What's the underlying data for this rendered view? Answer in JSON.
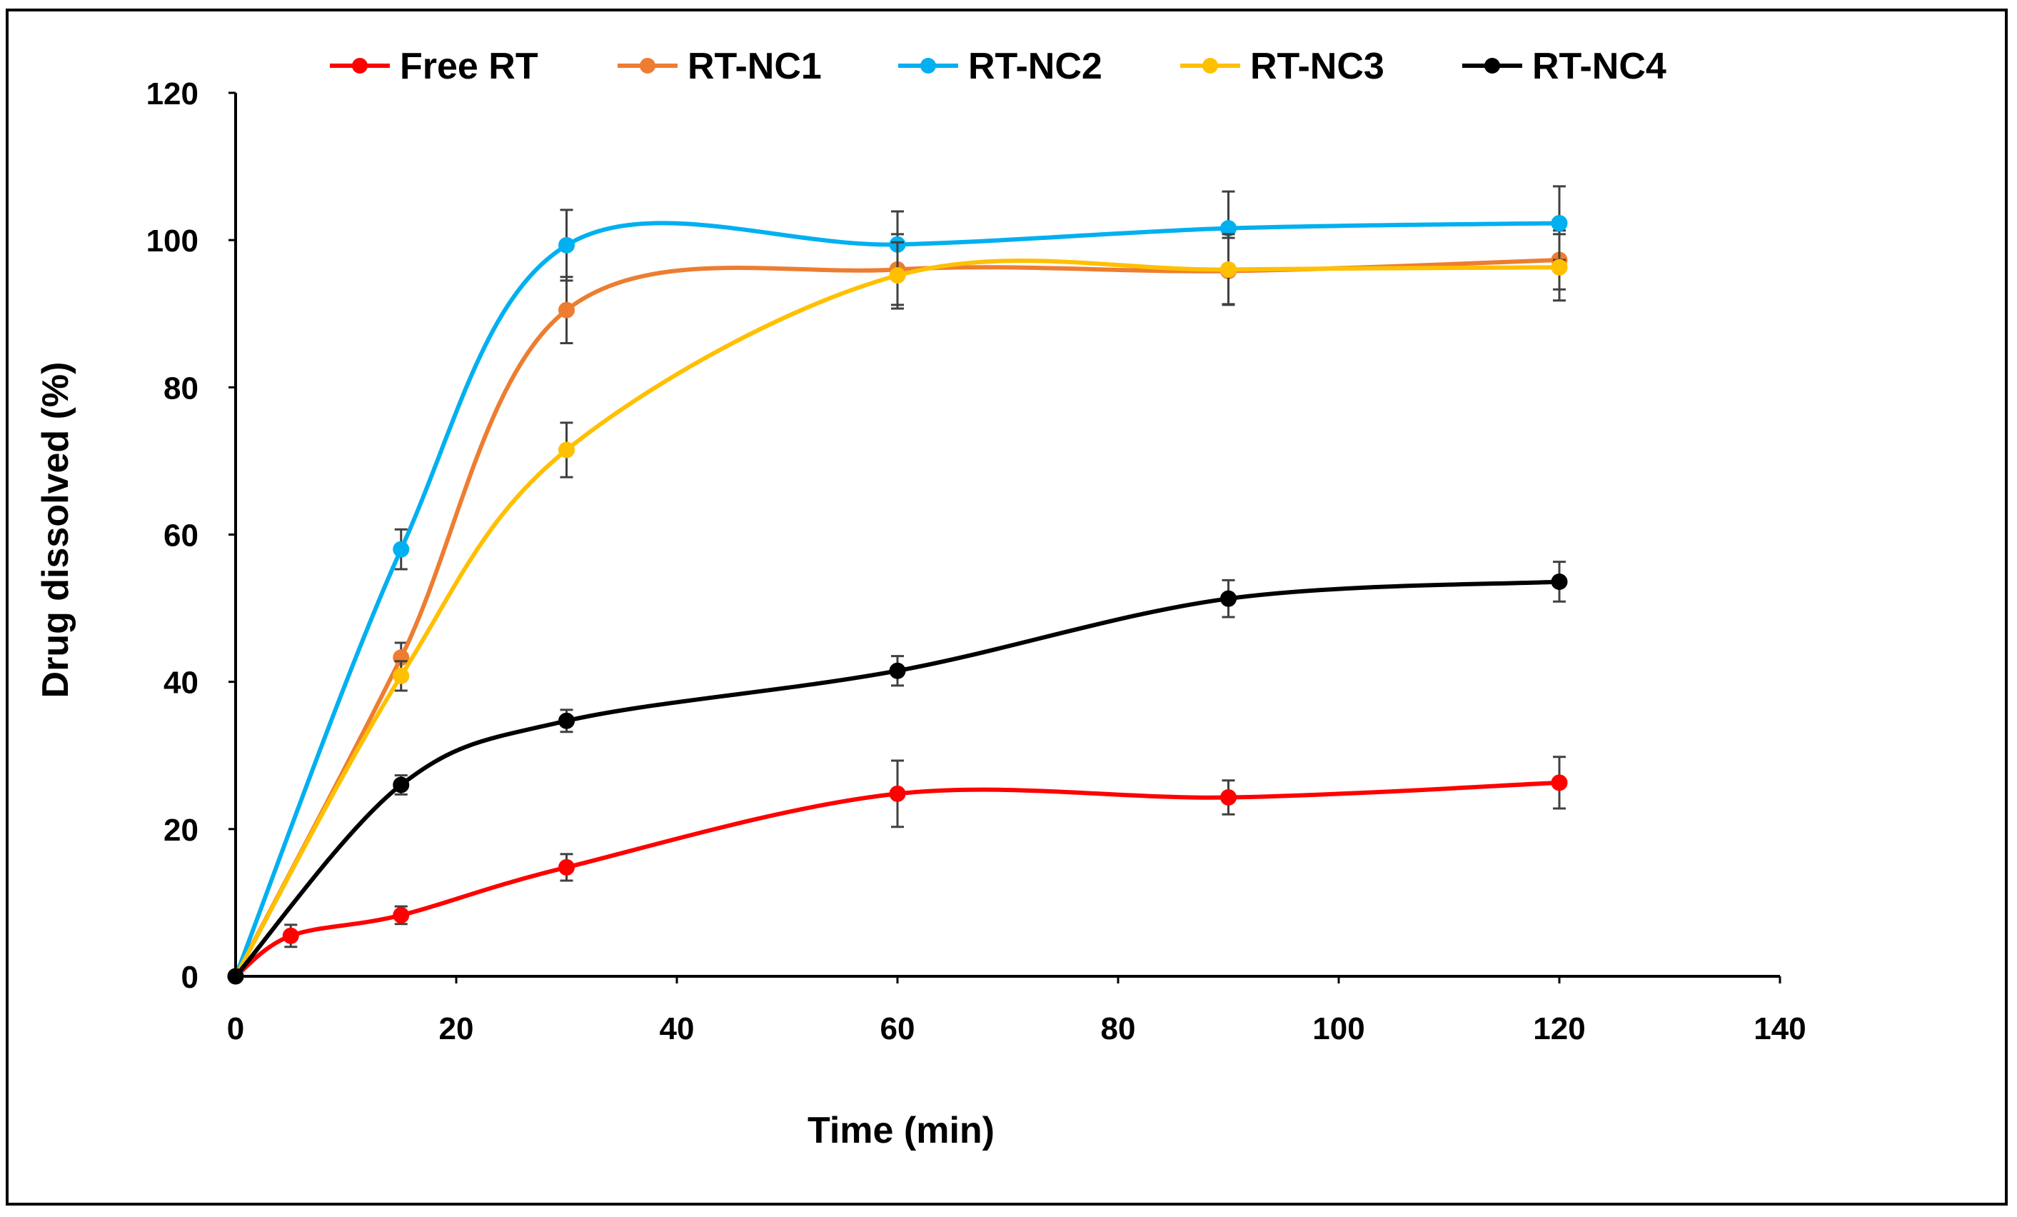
{
  "chart_data": {
    "type": "line",
    "title": "",
    "xlabel": "Time  (min)",
    "ylabel": "Drug dissolved (%)",
    "xlim": [
      0,
      140
    ],
    "ylim": [
      0,
      120
    ],
    "xticks": [
      0,
      20,
      40,
      60,
      80,
      100,
      120,
      140
    ],
    "yticks": [
      0,
      20,
      40,
      60,
      80,
      100,
      120
    ],
    "grid": false,
    "legend_position": "top",
    "smooth": true,
    "series": [
      {
        "name": "Free RT",
        "color": "#ff0000",
        "x": [
          0,
          5,
          15,
          30,
          60,
          90,
          120
        ],
        "y": [
          0,
          5.5,
          8.3,
          14.8,
          24.8,
          24.3,
          26.3
        ],
        "err": [
          0,
          1.5,
          1.2,
          1.8,
          4.5,
          2.3,
          3.5
        ]
      },
      {
        "name": "RT-NC1",
        "color": "#ed7d31",
        "x": [
          0,
          15,
          30,
          60,
          90,
          120
        ],
        "y": [
          0,
          43.3,
          90.5,
          96.0,
          95.8,
          97.3
        ],
        "err": [
          0,
          2.0,
          4.5,
          4.8,
          4.5,
          4.0
        ]
      },
      {
        "name": "RT-NC2",
        "color": "#00b0f0",
        "x": [
          0,
          15,
          30,
          60,
          90,
          120
        ],
        "y": [
          0,
          58.0,
          99.3,
          99.4,
          101.6,
          102.3
        ],
        "err": [
          0,
          2.7,
          4.8,
          4.5,
          5.0,
          5.0
        ]
      },
      {
        "name": "RT-NC3",
        "color": "#ffc000",
        "x": [
          0,
          15,
          30,
          60,
          90,
          120
        ],
        "y": [
          0,
          40.8,
          71.5,
          95.2,
          96.0,
          96.3
        ],
        "err": [
          0,
          2.0,
          3.7,
          4.5,
          4.8,
          4.5
        ]
      },
      {
        "name": "RT-NC4",
        "color": "#000000",
        "x": [
          0,
          15,
          30,
          60,
          90,
          120
        ],
        "y": [
          0,
          26.0,
          34.7,
          41.5,
          51.3,
          53.6
        ],
        "err": [
          0,
          1.3,
          1.5,
          2.0,
          2.5,
          2.7
        ]
      }
    ]
  }
}
